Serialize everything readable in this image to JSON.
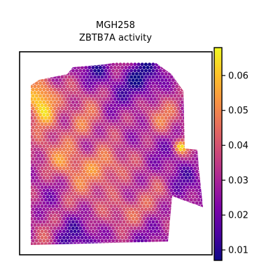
{
  "chart_data": {
    "type": "heatmap",
    "subtype": "spatial-hex-spot-map",
    "title_lines": [
      "MGH258",
      "ZBTB7A activity"
    ],
    "xlabel": "",
    "ylabel": "",
    "axes_ticks_visible": false,
    "grid": false,
    "colormap": "plasma",
    "colorbar": {
      "position": "right",
      "range": [
        0.007,
        0.068
      ],
      "ticks": [
        0.01,
        0.02,
        0.03,
        0.04,
        0.05,
        0.06
      ],
      "tick_labels": [
        "0.01",
        "0.02",
        "0.03",
        "0.04",
        "0.05",
        "0.06"
      ]
    },
    "value_summary": {
      "min": 0.007,
      "max": 0.068,
      "typical_range": [
        0.02,
        0.045
      ],
      "hotspot_location": "upper-left edge"
    }
  }
}
